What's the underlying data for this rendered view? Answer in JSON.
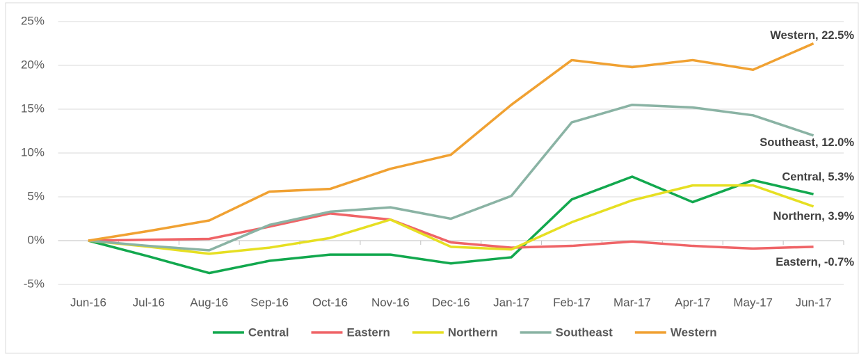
{
  "chart_data": {
    "type": "line",
    "categories": [
      "Jun-16",
      "Jul-16",
      "Aug-16",
      "Sep-16",
      "Oct-16",
      "Nov-16",
      "Dec-16",
      "Jan-17",
      "Feb-17",
      "Mar-17",
      "Apr-17",
      "May-17",
      "Jun-17"
    ],
    "ylim": [
      -5,
      25
    ],
    "yticks": [
      {
        "value": -5,
        "label": "-5%"
      },
      {
        "value": 0,
        "label": "0%"
      },
      {
        "value": 5,
        "label": "5%"
      },
      {
        "value": 10,
        "label": "10%"
      },
      {
        "value": 15,
        "label": "15%"
      },
      {
        "value": 20,
        "label": "20%"
      },
      {
        "value": 25,
        "label": "25%"
      }
    ],
    "grid": true,
    "legend": "bottom",
    "series": [
      {
        "name": "Central",
        "color": "#12a84e",
        "values": [
          0,
          -1.8,
          -3.7,
          -2.3,
          -1.6,
          -1.6,
          -2.6,
          -1.9,
          4.7,
          7.3,
          4.4,
          6.9,
          5.3
        ],
        "value_labels": [
          null,
          null,
          null,
          null,
          null,
          null,
          null,
          null,
          null,
          null,
          null,
          null,
          "Central, 5.3%"
        ]
      },
      {
        "name": "Eastern",
        "color": "#ef6467",
        "values": [
          0,
          0.1,
          0.2,
          1.6,
          3.1,
          2.4,
          -0.2,
          -0.8,
          -0.6,
          -0.1,
          -0.6,
          -0.9,
          -0.7
        ],
        "value_labels": [
          null,
          null,
          null,
          null,
          null,
          null,
          null,
          null,
          null,
          null,
          null,
          null,
          "Eastern, -0.7%"
        ]
      },
      {
        "name": "Northern",
        "color": "#e6df22",
        "values": [
          0,
          -0.7,
          -1.5,
          -0.8,
          0.3,
          2.4,
          -0.7,
          -1.0,
          2.1,
          4.6,
          6.3,
          6.3,
          3.9
        ],
        "value_labels": [
          null,
          null,
          null,
          null,
          null,
          null,
          null,
          null,
          null,
          null,
          null,
          null,
          "Northern, 3.9%"
        ]
      },
      {
        "name": "Southeast",
        "color": "#8ab3a4",
        "values": [
          0,
          -0.6,
          -1.1,
          1.8,
          3.3,
          3.8,
          2.5,
          5.1,
          13.5,
          15.5,
          15.2,
          14.3,
          12.0
        ],
        "value_labels": [
          null,
          null,
          null,
          null,
          null,
          null,
          null,
          null,
          null,
          null,
          null,
          null,
          "Southeast, 12.0%"
        ]
      },
      {
        "name": "Western",
        "color": "#f0a132",
        "values": [
          0,
          1.1,
          2.3,
          5.6,
          5.9,
          8.2,
          9.8,
          15.5,
          20.6,
          19.8,
          20.6,
          19.5,
          22.5
        ],
        "value_labels": [
          null,
          null,
          null,
          null,
          null,
          null,
          null,
          null,
          null,
          null,
          null,
          null,
          "Western, 22.5%"
        ]
      }
    ]
  }
}
